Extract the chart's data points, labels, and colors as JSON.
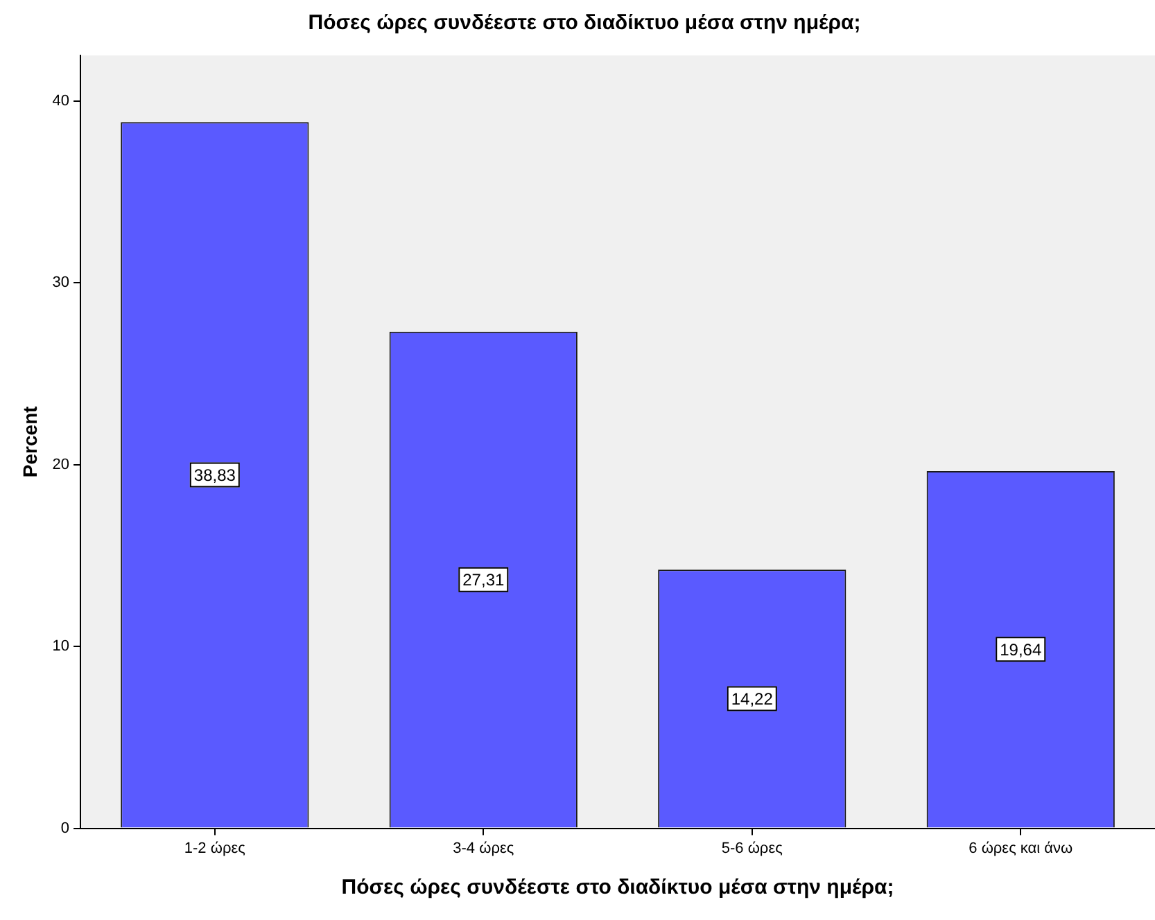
{
  "chart_data": {
    "type": "bar",
    "title": "Πόσες ώρες συνδέεστε στο διαδίκτυο μέσα στην ημέρα;",
    "xlabel": "Πόσες ώρες συνδέεστε στο διαδίκτυο μέσα στην ημέρα;",
    "ylabel": "Percent",
    "categories": [
      "1-2 ώρες",
      "3-4 ώρες",
      "5-6 ώρες",
      "6 ώρες και άνω"
    ],
    "values": [
      38.83,
      27.31,
      14.22,
      19.64
    ],
    "value_labels": [
      "38,83",
      "27,31",
      "14,22",
      "19,64"
    ],
    "color": "#5a5aff",
    "ylim": [
      0,
      42.5
    ],
    "yticks": [
      0,
      10,
      20,
      30,
      40
    ],
    "grid": false,
    "legend": false
  }
}
